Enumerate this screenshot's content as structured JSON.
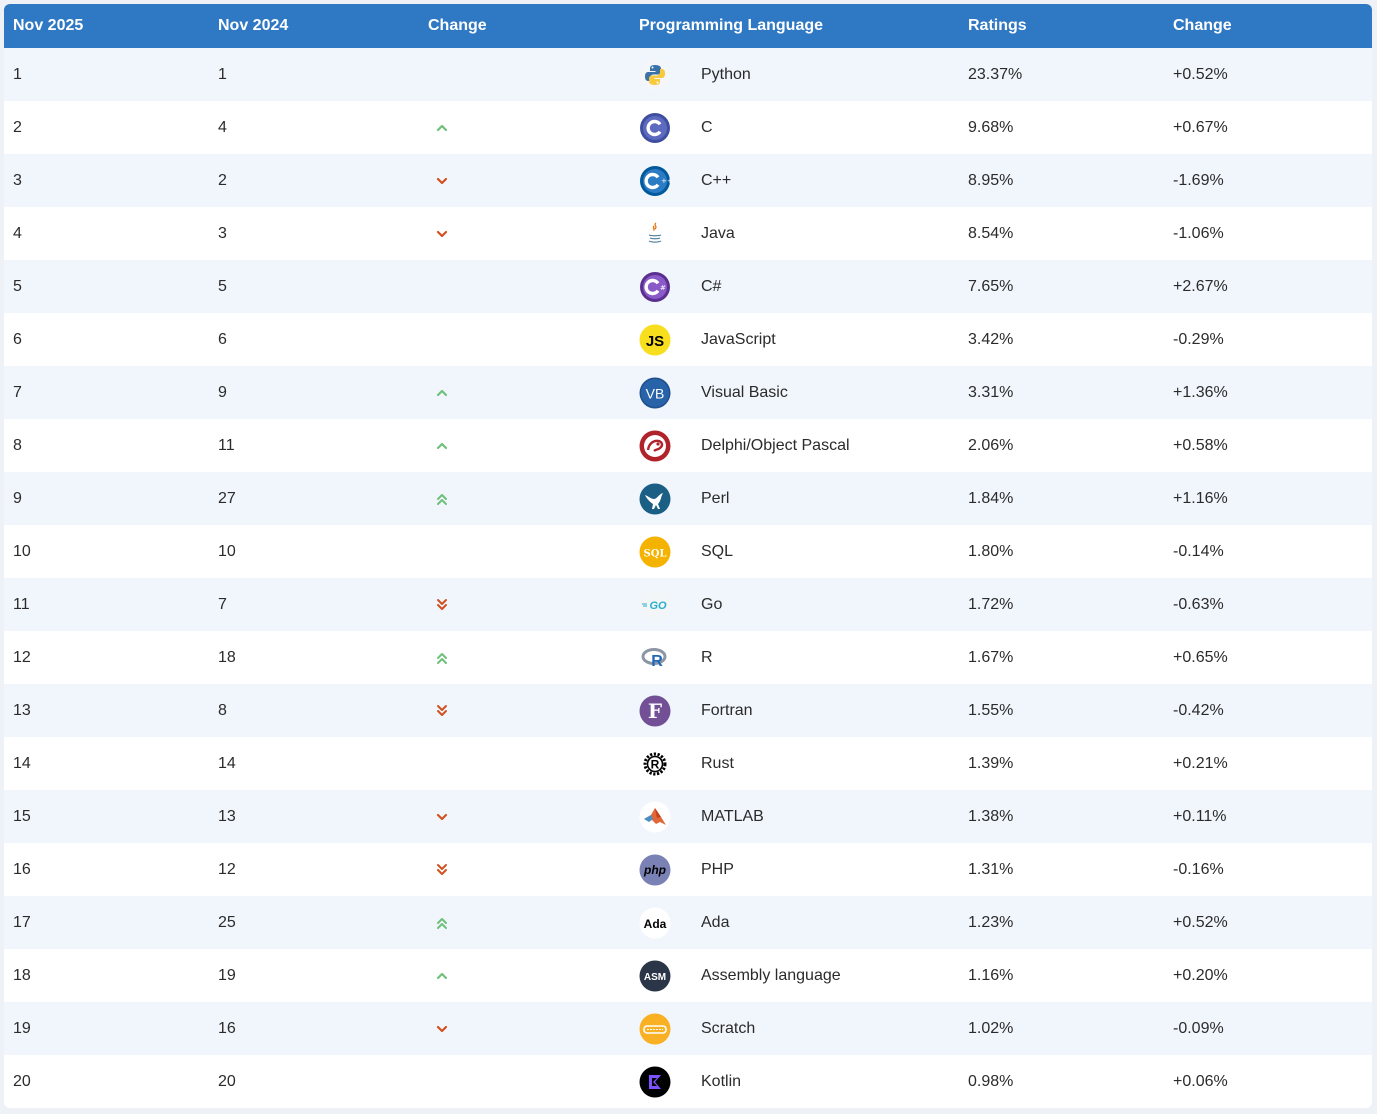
{
  "colors": {
    "header_bg": "#2f78c4",
    "row_alt_bg": "#f1f6fc",
    "up_arrow": "#6fc07a",
    "down_arrow": "#d2501f"
  },
  "header": {
    "current": "Nov 2025",
    "previous": "Nov 2024",
    "change": "Change",
    "language": "Programming Language",
    "ratings": "Ratings",
    "ratings_change": "Change"
  },
  "rows": [
    {
      "cur": "1",
      "prev": "1",
      "trend": "none",
      "icon": "python-icon",
      "lang": "Python",
      "rating": "23.37%",
      "diff": "+0.52%"
    },
    {
      "cur": "2",
      "prev": "4",
      "trend": "up",
      "icon": "c-icon",
      "lang": "C",
      "rating": "9.68%",
      "diff": "+0.67%"
    },
    {
      "cur": "3",
      "prev": "2",
      "trend": "down",
      "icon": "cpp-icon",
      "lang": "C++",
      "rating": "8.95%",
      "diff": "-1.69%"
    },
    {
      "cur": "4",
      "prev": "3",
      "trend": "down",
      "icon": "java-icon",
      "lang": "Java",
      "rating": "8.54%",
      "diff": "-1.06%"
    },
    {
      "cur": "5",
      "prev": "5",
      "trend": "none",
      "icon": "csharp-icon",
      "lang": "C#",
      "rating": "7.65%",
      "diff": "+2.67%"
    },
    {
      "cur": "6",
      "prev": "6",
      "trend": "none",
      "icon": "javascript-icon",
      "lang": "JavaScript",
      "rating": "3.42%",
      "diff": "-0.29%"
    },
    {
      "cur": "7",
      "prev": "9",
      "trend": "up",
      "icon": "visual-basic-icon",
      "lang": "Visual Basic",
      "rating": "3.31%",
      "diff": "+1.36%"
    },
    {
      "cur": "8",
      "prev": "11",
      "trend": "up",
      "icon": "delphi-icon",
      "lang": "Delphi/Object Pascal",
      "rating": "2.06%",
      "diff": "+0.58%"
    },
    {
      "cur": "9",
      "prev": "27",
      "trend": "up2",
      "icon": "perl-icon",
      "lang": "Perl",
      "rating": "1.84%",
      "diff": "+1.16%"
    },
    {
      "cur": "10",
      "prev": "10",
      "trend": "none",
      "icon": "sql-icon",
      "lang": "SQL",
      "rating": "1.80%",
      "diff": "-0.14%"
    },
    {
      "cur": "11",
      "prev": "7",
      "trend": "down2",
      "icon": "go-icon",
      "lang": "Go",
      "rating": "1.72%",
      "diff": "-0.63%"
    },
    {
      "cur": "12",
      "prev": "18",
      "trend": "up2",
      "icon": "r-icon",
      "lang": "R",
      "rating": "1.67%",
      "diff": "+0.65%"
    },
    {
      "cur": "13",
      "prev": "8",
      "trend": "down2",
      "icon": "fortran-icon",
      "lang": "Fortran",
      "rating": "1.55%",
      "diff": "-0.42%"
    },
    {
      "cur": "14",
      "prev": "14",
      "trend": "none",
      "icon": "rust-icon",
      "lang": "Rust",
      "rating": "1.39%",
      "diff": "+0.21%"
    },
    {
      "cur": "15",
      "prev": "13",
      "trend": "down",
      "icon": "matlab-icon",
      "lang": "MATLAB",
      "rating": "1.38%",
      "diff": "+0.11%"
    },
    {
      "cur": "16",
      "prev": "12",
      "trend": "down2",
      "icon": "php-icon",
      "lang": "PHP",
      "rating": "1.31%",
      "diff": "-0.16%"
    },
    {
      "cur": "17",
      "prev": "25",
      "trend": "up2",
      "icon": "ada-icon",
      "lang": "Ada",
      "rating": "1.23%",
      "diff": "+0.52%"
    },
    {
      "cur": "18",
      "prev": "19",
      "trend": "up",
      "icon": "assembly-icon",
      "lang": "Assembly language",
      "rating": "1.16%",
      "diff": "+0.20%"
    },
    {
      "cur": "19",
      "prev": "16",
      "trend": "down",
      "icon": "scratch-icon",
      "lang": "Scratch",
      "rating": "1.02%",
      "diff": "-0.09%"
    },
    {
      "cur": "20",
      "prev": "20",
      "trend": "none",
      "icon": "kotlin-icon",
      "lang": "Kotlin",
      "rating": "0.98%",
      "diff": "+0.06%"
    }
  ],
  "icon_labels": {
    "js": "JS",
    "vb": "VB",
    "sql": "SQL",
    "go": "GO",
    "r": "R",
    "fortran": "F",
    "php": "php",
    "ada": "Ada",
    "asm": "ASM"
  }
}
